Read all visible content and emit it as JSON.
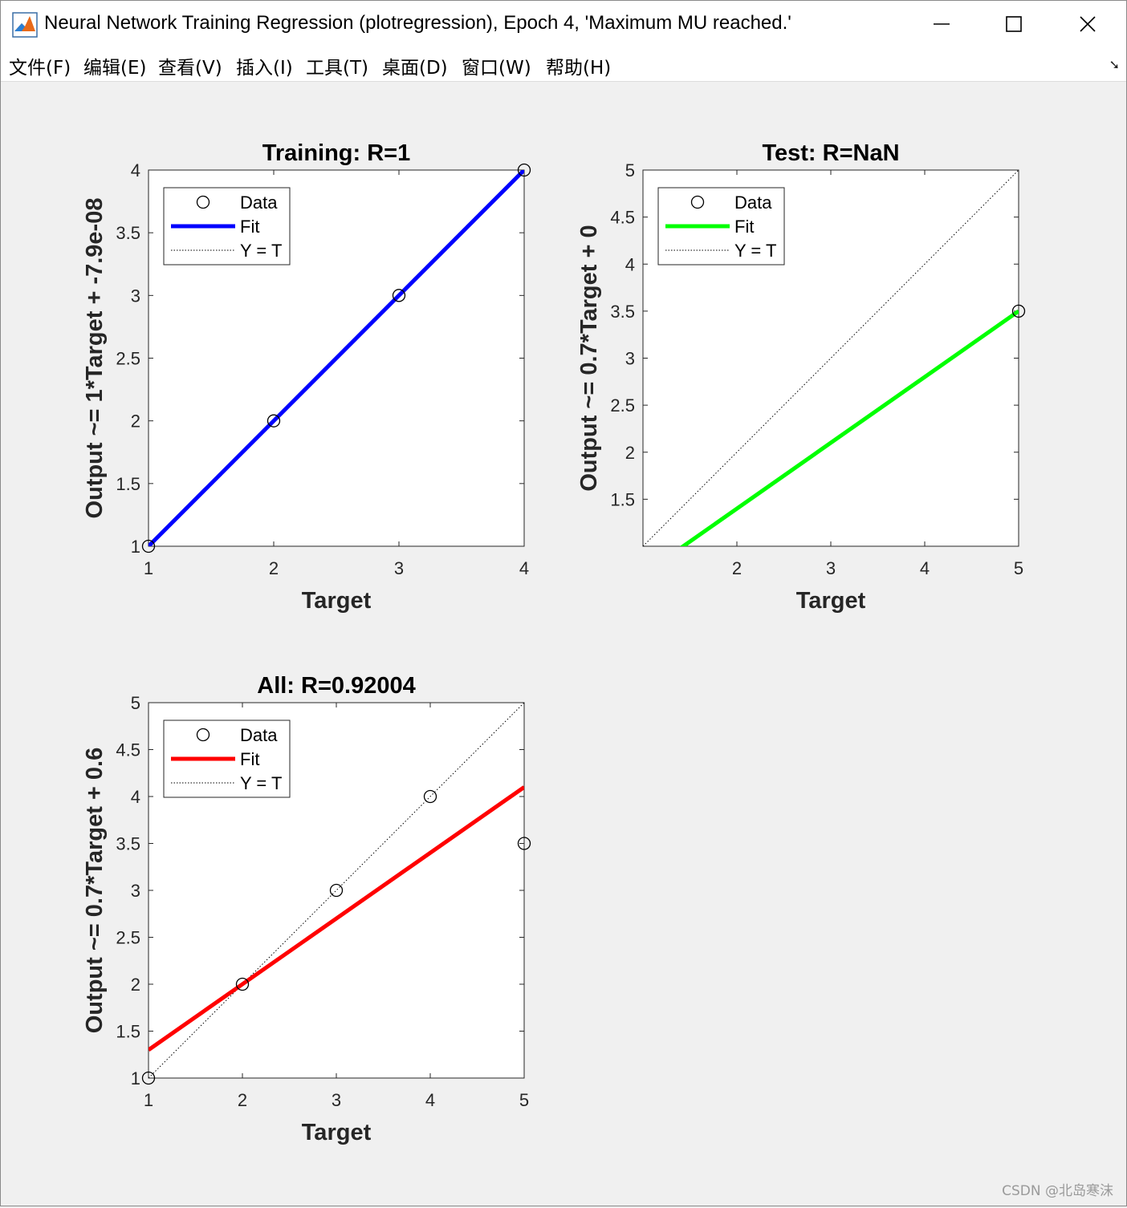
{
  "window": {
    "title": "Neural Network Training Regression (plotregression), Epoch 4, 'Maximum MU reached.'",
    "app_icon": "matlab-icon",
    "controls": [
      "minimize-icon",
      "maximize-icon",
      "close-icon"
    ]
  },
  "menu": {
    "items": [
      {
        "label": "文件(F)"
      },
      {
        "label": "编辑(E)"
      },
      {
        "label": "查看(V)"
      },
      {
        "label": "插入(I)"
      },
      {
        "label": "工具(T)"
      },
      {
        "label": "桌面(D)"
      },
      {
        "label": "窗口(W)"
      },
      {
        "label": "帮助(H)"
      }
    ],
    "dock_icon": "undock-arrow-icon"
  },
  "watermark": "CSDN @北岛寒沫",
  "chart_data": [
    {
      "type": "scatter",
      "title": "Training: R=1",
      "xlabel": "Target",
      "ylabel": "Output ~= 1*Target + -7.9e-08",
      "xlim": [
        1,
        4
      ],
      "ylim": [
        1,
        4
      ],
      "xticks": [
        "1",
        "2",
        "3",
        "4"
      ],
      "yticks": [
        "1",
        "1.5",
        "2",
        "2.5",
        "3",
        "3.5",
        "4"
      ],
      "points": {
        "x": [
          1,
          2,
          3,
          4
        ],
        "y": [
          1,
          2,
          3,
          4
        ]
      },
      "fit": {
        "slope": 1,
        "intercept": 0,
        "color": "#0000ff"
      },
      "legend": {
        "position": "top-left",
        "entries": [
          "Data",
          "Fit",
          "Y = T"
        ]
      },
      "grid": false
    },
    {
      "type": "scatter",
      "title": "Test: R=NaN",
      "xlabel": "Target",
      "ylabel": "Output ~= 0.7*Target + 0",
      "xlim": [
        1,
        5
      ],
      "ylim": [
        1,
        5
      ],
      "xticks": [
        "2",
        "3",
        "4",
        "5"
      ],
      "yticks": [
        "1.5",
        "2",
        "2.5",
        "3",
        "3.5",
        "4",
        "4.5",
        "5"
      ],
      "points": {
        "x": [
          5
        ],
        "y": [
          3.5
        ]
      },
      "fit": {
        "slope": 0.7,
        "intercept": 0,
        "color": "#00ff00"
      },
      "legend": {
        "position": "top-left",
        "entries": [
          "Data",
          "Fit",
          "Y = T"
        ]
      },
      "grid": false
    },
    {
      "type": "scatter",
      "title": "All: R=0.92004",
      "xlabel": "Target",
      "ylabel": "Output ~= 0.7*Target + 0.6",
      "xlim": [
        1,
        5
      ],
      "ylim": [
        1,
        5
      ],
      "xticks": [
        "1",
        "2",
        "3",
        "4",
        "5"
      ],
      "yticks": [
        "1",
        "1.5",
        "2",
        "2.5",
        "3",
        "3.5",
        "4",
        "4.5",
        "5"
      ],
      "points": {
        "x": [
          1,
          2,
          3,
          4,
          5
        ],
        "y": [
          1,
          2,
          3,
          4,
          3.5
        ]
      },
      "fit": {
        "slope": 0.7,
        "intercept": 0.6,
        "color": "#ff0000"
      },
      "legend": {
        "position": "top-left",
        "entries": [
          "Data",
          "Fit",
          "Y = T"
        ]
      },
      "grid": false
    }
  ]
}
